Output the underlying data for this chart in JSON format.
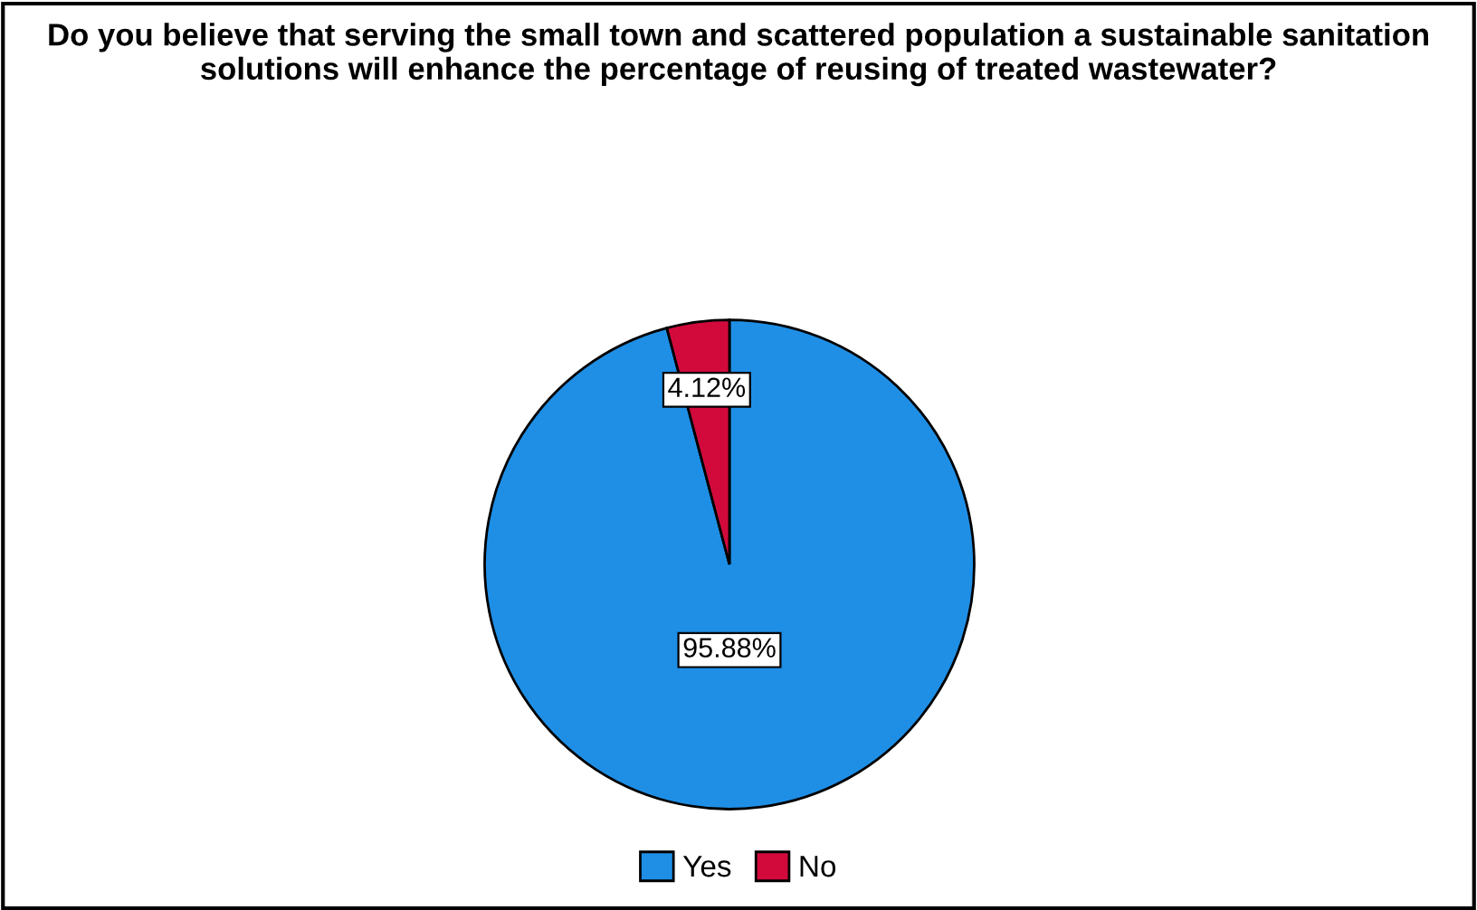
{
  "chart_data": {
    "type": "pie",
    "title": "Do you believe that serving the small town and scattered population a sustainable sanitation solutions will enhance the percentage of reusing of treated wastewater?",
    "categories": [
      "Yes",
      "No"
    ],
    "values": [
      95.88,
      4.12
    ],
    "colors": [
      "#1f8fe6",
      "#d20a3c"
    ],
    "value_labels": [
      "95.88%",
      "4.12%"
    ],
    "legend": "bottom"
  }
}
